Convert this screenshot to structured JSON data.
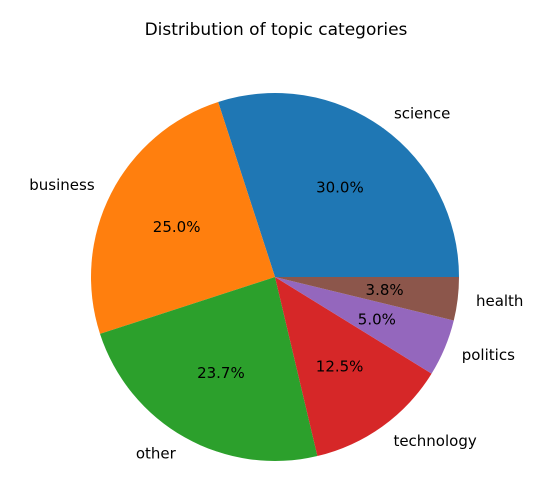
{
  "chart_data": {
    "type": "pie",
    "title": "Distribution of topic categories",
    "slices": [
      {
        "label": "science",
        "value": 30.0,
        "display": "30.0%",
        "color": "#1f77b4"
      },
      {
        "label": "business",
        "value": 25.0,
        "display": "25.0%",
        "color": "#ff7f0e"
      },
      {
        "label": "other",
        "value": 23.7,
        "display": "23.7%",
        "color": "#2ca02c"
      },
      {
        "label": "technology",
        "value": 12.5,
        "display": "12.5%",
        "color": "#d62728"
      },
      {
        "label": "politics",
        "value": 5.0,
        "display": "5.0%",
        "color": "#9467bd"
      },
      {
        "label": "health",
        "value": 3.8,
        "display": "3.8%",
        "color": "#8c564b"
      }
    ],
    "start_angle_deg": 0,
    "direction": "counterclockwise",
    "legend": "none"
  }
}
